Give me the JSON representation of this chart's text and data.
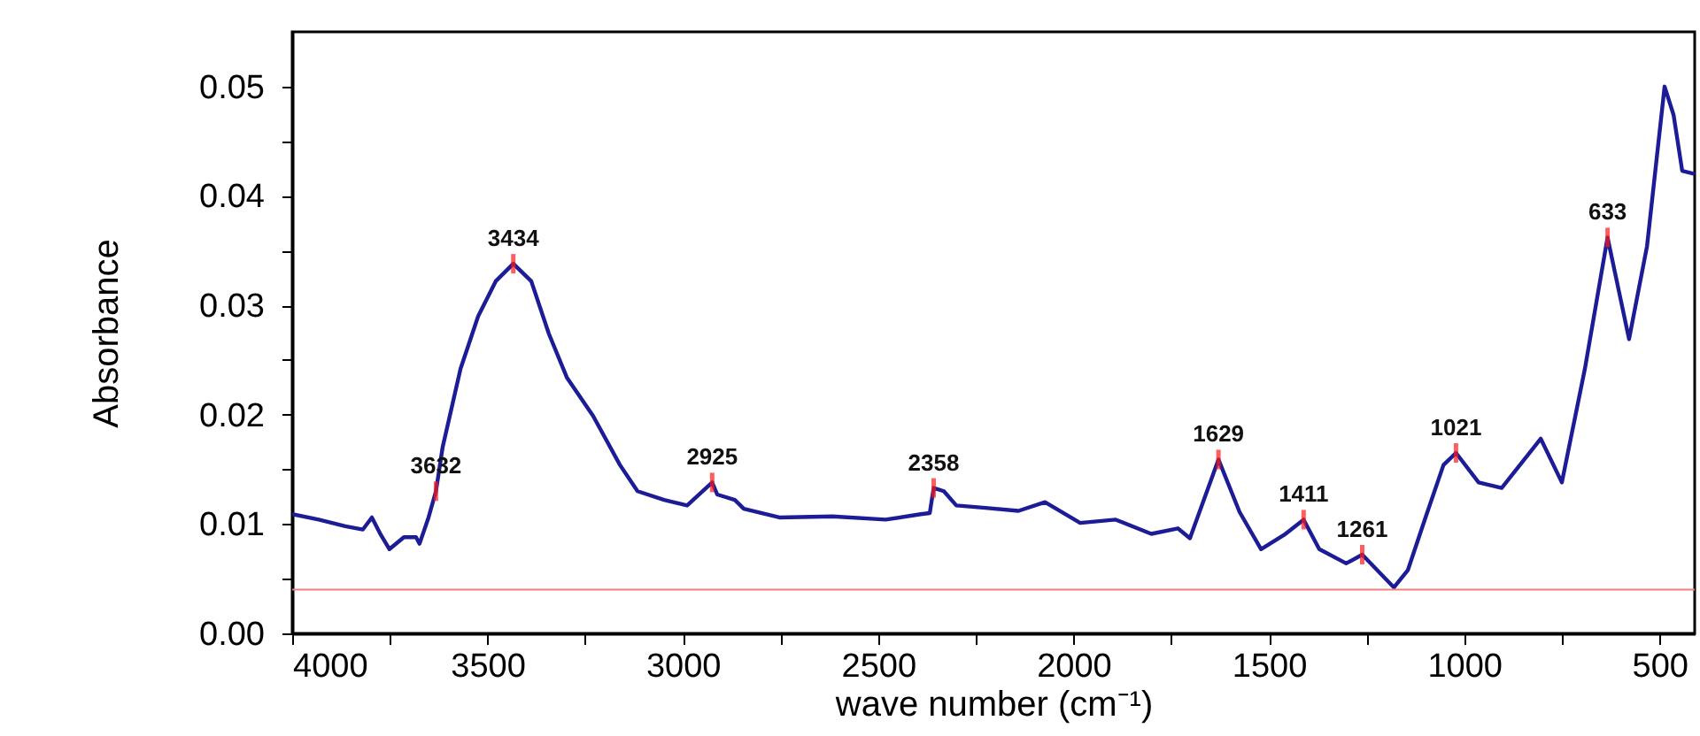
{
  "chart_data": {
    "type": "line",
    "xlabel": "wave number (cm⁻¹)",
    "ylabel": "Absorbance",
    "x": [
      4000,
      3932,
      3864,
      3819,
      3796,
      3773,
      3751,
      3714,
      3683,
      3674,
      3651,
      3632,
      3615,
      3569,
      3524,
      3479,
      3434,
      3388,
      3343,
      3297,
      3230,
      3161,
      3116,
      3048,
      2989,
      2925,
      2912,
      2867,
      2844,
      2753,
      2617,
      2481,
      2391,
      2368,
      2358,
      2332,
      2300,
      2232,
      2141,
      2073,
      1983,
      1892,
      1801,
      1733,
      1702,
      1629,
      1575,
      1520,
      1461,
      1411,
      1371,
      1302,
      1261,
      1180,
      1144,
      1099,
      1053,
      1021,
      963,
      904,
      804,
      750,
      691,
      633,
      578,
      532,
      487,
      464,
      442,
      410
    ],
    "series": [
      {
        "color": "#1c1c96",
        "values": [
          0.0109,
          0.0104,
          0.0098,
          0.0095,
          0.0106,
          0.009,
          0.0077,
          0.0088,
          0.0088,
          0.0082,
          0.0106,
          0.013,
          0.017,
          0.0242,
          0.029,
          0.0322,
          0.0338,
          0.0322,
          0.0274,
          0.0234,
          0.0199,
          0.0154,
          0.013,
          0.0122,
          0.0117,
          0.0138,
          0.0127,
          0.0122,
          0.0114,
          0.0106,
          0.0107,
          0.0104,
          0.0109,
          0.011,
          0.0133,
          0.013,
          0.0117,
          0.0115,
          0.0112,
          0.012,
          0.0101,
          0.0104,
          0.0091,
          0.0096,
          0.0087,
          0.0159,
          0.0111,
          0.0077,
          0.009,
          0.0104,
          0.0077,
          0.0064,
          0.0072,
          0.0042,
          0.0058,
          0.0106,
          0.0154,
          0.0165,
          0.0138,
          0.0133,
          0.0178,
          0.0138,
          0.0242,
          0.0362,
          0.0269,
          0.0354,
          0.05,
          0.0474,
          0.0423,
          0.042
        ]
      }
    ],
    "xlim": [
      4000,
      410
    ],
    "xticks": [
      4000,
      {
        "value": 3750,
        "label": null
      },
      3500,
      {
        "value": 3250,
        "label": null
      },
      3000,
      {
        "value": 2750,
        "label": null
      },
      2500,
      {
        "value": 2250,
        "label": null
      },
      2000,
      {
        "value": 1750,
        "label": null
      },
      1500,
      {
        "value": 1250,
        "label": null
      },
      1000,
      {
        "value": 750,
        "label": null
      },
      500
    ],
    "ylim": [
      0,
      0.055
    ],
    "yticks": [
      {
        "value": 0,
        "label": "0.00"
      },
      {
        "value": 0.005,
        "label": null
      },
      0.01,
      {
        "value": 0.015,
        "label": null
      },
      0.02,
      {
        "value": 0.025,
        "label": null
      },
      0.03,
      {
        "value": 0.035,
        "label": null
      },
      0.04,
      {
        "value": 0.045,
        "label": null
      },
      0.05
    ],
    "grid": false,
    "ref_lines": [
      {
        "axis": "y",
        "value": 0.004,
        "color": "#f08080"
      }
    ],
    "annotations": [
      {
        "text": "3632",
        "x": 3632,
        "y": 0.013
      },
      {
        "text": "3434",
        "x": 3434,
        "y": 0.0338
      },
      {
        "text": "2925",
        "x": 2925,
        "y": 0.0138
      },
      {
        "text": "2358",
        "x": 2358,
        "y": 0.0133
      },
      {
        "text": "1629",
        "x": 1629,
        "y": 0.0159
      },
      {
        "text": "1411",
        "x": 1411,
        "y": 0.0104
      },
      {
        "text": "1261",
        "x": 1261,
        "y": 0.0072
      },
      {
        "text": "1021",
        "x": 1021,
        "y": 0.0165
      },
      {
        "text": "633",
        "x": 633,
        "y": 0.0362
      }
    ]
  }
}
